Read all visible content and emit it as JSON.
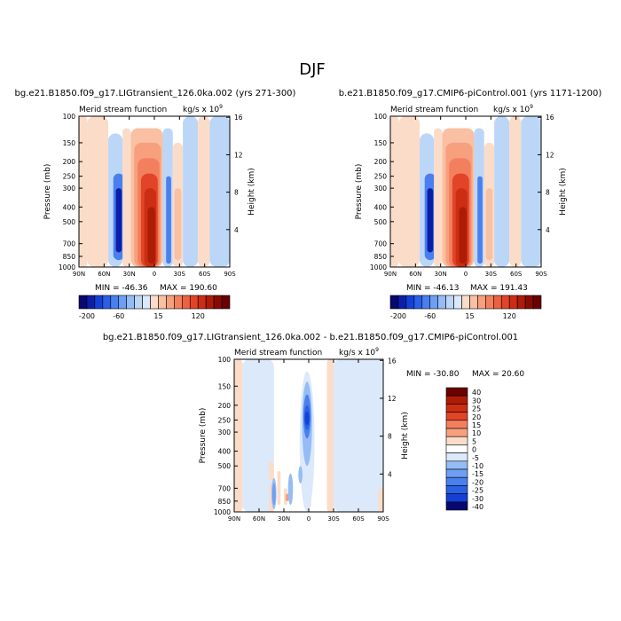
{
  "figure_title": "DJF",
  "colors": {
    "neg_ramp": [
      "#08086e",
      "#0b1ea8",
      "#1440d4",
      "#2a5fe6",
      "#4a7fee",
      "#6e9ff3",
      "#95bcf5",
      "#bcd6f8",
      "#dbe9fb"
    ],
    "pos_ramp": [
      "#fbdcc8",
      "#f9c0a3",
      "#f6a07e",
      "#f2805f",
      "#ec6140",
      "#e24427",
      "#cc2e14",
      "#ad1c06",
      "#8a0a00",
      "#6a0000"
    ]
  },
  "chart_data": [
    {
      "id": "p1",
      "type": "contour",
      "title": "bg.e21.B1850.f09_g17.LIGtransient_126.0ka.002 (yrs 271-300)",
      "subtitle": "Merid stream function",
      "units": "kg/s x 10",
      "units_exp": "9",
      "ylabel": "Pressure (mb)",
      "ylabel_right": "Height (km)",
      "x_ticks": [
        "90N",
        "60N",
        "30N",
        "0",
        "30S",
        "60S",
        "90S"
      ],
      "y_ticks": [
        100,
        150,
        200,
        250,
        300,
        400,
        500,
        700,
        850,
        1000
      ],
      "height_ticks": [
        4,
        8,
        12,
        16
      ],
      "ylim": [
        100,
        1000
      ],
      "min_label": "MIN = -46.36",
      "max_label": "MAX = 190.60",
      "colorbar_ticks": [
        "-200",
        "-60",
        "15",
        "120"
      ],
      "cells": [
        {
          "lat": [
            90,
            80
          ],
          "p": [
            100,
            1000
          ],
          "v": 5
        },
        {
          "lat": [
            80,
            55
          ],
          "p": [
            100,
            1000
          ],
          "v": 5
        },
        {
          "lat": [
            55,
            38
          ],
          "p": [
            130,
            1000
          ],
          "v": -5
        },
        {
          "lat": [
            49,
            36
          ],
          "p": [
            240,
            900
          ],
          "v": -15
        },
        {
          "lat": [
            46,
            39
          ],
          "p": [
            300,
            800
          ],
          "v": -30
        },
        {
          "lat": [
            38,
            28
          ],
          "p": [
            120,
            1000
          ],
          "v": 5
        },
        {
          "lat": [
            28,
            -10
          ],
          "p": [
            120,
            1000
          ],
          "v": 10
        },
        {
          "lat": [
            24,
            -8
          ],
          "p": [
            150,
            1000
          ],
          "v": 20
        },
        {
          "lat": [
            20,
            -6
          ],
          "p": [
            190,
            1000
          ],
          "v": 40
        },
        {
          "lat": [
            16,
            -4
          ],
          "p": [
            240,
            1000
          ],
          "v": 80
        },
        {
          "lat": [
            12,
            -2
          ],
          "p": [
            300,
            1000
          ],
          "v": 120
        },
        {
          "lat": [
            8,
            -1
          ],
          "p": [
            400,
            950
          ],
          "v": 160
        },
        {
          "lat": [
            -10,
            -22
          ],
          "p": [
            120,
            1000
          ],
          "v": -5
        },
        {
          "lat": [
            -14,
            -20
          ],
          "p": [
            250,
            950
          ],
          "v": -15
        },
        {
          "lat": [
            -22,
            -34
          ],
          "p": [
            150,
            1000
          ],
          "v": 5
        },
        {
          "lat": [
            -24,
            -32
          ],
          "p": [
            300,
            900
          ],
          "v": 10
        },
        {
          "lat": [
            -34,
            -52
          ],
          "p": [
            100,
            1000
          ],
          "v": -5
        },
        {
          "lat": [
            -52,
            -66
          ],
          "p": [
            100,
            1000
          ],
          "v": 5
        },
        {
          "lat": [
            -66,
            -90
          ],
          "p": [
            100,
            1000
          ],
          "v": -5
        }
      ]
    },
    {
      "id": "p2",
      "type": "contour",
      "title": "b.e21.B1850.f09_g17.CMIP6-piControl.001 (yrs 1171-1200)",
      "subtitle": "Merid stream function",
      "units": "kg/s x 10",
      "units_exp": "9",
      "ylabel": "Pressure (mb)",
      "ylabel_right": "Height (km)",
      "x_ticks": [
        "90N",
        "60N",
        "30N",
        "0",
        "30S",
        "60S",
        "90S"
      ],
      "y_ticks": [
        100,
        150,
        200,
        250,
        300,
        400,
        500,
        700,
        850,
        1000
      ],
      "height_ticks": [
        4,
        8,
        12,
        16
      ],
      "ylim": [
        100,
        1000
      ],
      "min_label": "MIN = -46.13",
      "max_label": "MAX = 191.43",
      "colorbar_ticks": [
        "-200",
        "-60",
        "15",
        "120"
      ],
      "cells": [
        {
          "lat": [
            90,
            80
          ],
          "p": [
            100,
            1000
          ],
          "v": 5
        },
        {
          "lat": [
            80,
            55
          ],
          "p": [
            100,
            1000
          ],
          "v": 5
        },
        {
          "lat": [
            55,
            38
          ],
          "p": [
            130,
            1000
          ],
          "v": -5
        },
        {
          "lat": [
            49,
            36
          ],
          "p": [
            240,
            900
          ],
          "v": -15
        },
        {
          "lat": [
            46,
            39
          ],
          "p": [
            300,
            800
          ],
          "v": -30
        },
        {
          "lat": [
            38,
            28
          ],
          "p": [
            120,
            1000
          ],
          "v": 5
        },
        {
          "lat": [
            28,
            -10
          ],
          "p": [
            120,
            1000
          ],
          "v": 10
        },
        {
          "lat": [
            24,
            -8
          ],
          "p": [
            150,
            1000
          ],
          "v": 20
        },
        {
          "lat": [
            20,
            -6
          ],
          "p": [
            190,
            1000
          ],
          "v": 40
        },
        {
          "lat": [
            16,
            -4
          ],
          "p": [
            240,
            1000
          ],
          "v": 80
        },
        {
          "lat": [
            12,
            -2
          ],
          "p": [
            300,
            1000
          ],
          "v": 120
        },
        {
          "lat": [
            8,
            -1
          ],
          "p": [
            400,
            950
          ],
          "v": 160
        },
        {
          "lat": [
            -10,
            -22
          ],
          "p": [
            120,
            1000
          ],
          "v": -5
        },
        {
          "lat": [
            -14,
            -20
          ],
          "p": [
            250,
            950
          ],
          "v": -15
        },
        {
          "lat": [
            -22,
            -34
          ],
          "p": [
            150,
            1000
          ],
          "v": 5
        },
        {
          "lat": [
            -24,
            -32
          ],
          "p": [
            300,
            900
          ],
          "v": 10
        },
        {
          "lat": [
            -34,
            -52
          ],
          "p": [
            100,
            1000
          ],
          "v": -5
        },
        {
          "lat": [
            -52,
            -66
          ],
          "p": [
            100,
            1000
          ],
          "v": 5
        },
        {
          "lat": [
            -66,
            -90
          ],
          "p": [
            100,
            1000
          ],
          "v": -5
        }
      ]
    },
    {
      "id": "p3",
      "type": "contour",
      "title": "bg.e21.B1850.f09_g17.LIGtransient_126.0ka.002 - b.e21.B1850.f09_g17.CMIP6-piControl.001",
      "subtitle": "Merid stream function",
      "units": "kg/s x 10",
      "units_exp": "9",
      "ylabel": "Pressure (mb)",
      "ylabel_right": "Height (km)",
      "x_ticks": [
        "90N",
        "60N",
        "30N",
        "0",
        "30S",
        "60S",
        "90S"
      ],
      "y_ticks": [
        100,
        150,
        200,
        250,
        300,
        400,
        500,
        700,
        850,
        1000
      ],
      "height_ticks": [
        4,
        8,
        12,
        16
      ],
      "ylim": [
        100,
        1000
      ],
      "min_label": "MIN = -30.80",
      "max_label": "MAX =  20.60",
      "legend_levels": [
        40,
        30,
        25,
        20,
        15,
        10,
        5,
        0,
        -5,
        -10,
        -15,
        -20,
        -25,
        -30,
        -40
      ],
      "cells": [
        {
          "lat": [
            90,
            80
          ],
          "p": [
            100,
            1000
          ],
          "v": 5
        },
        {
          "lat": [
            80,
            42
          ],
          "p": [
            100,
            1000
          ],
          "v": -5
        },
        {
          "lat": [
            48,
            42
          ],
          "p": [
            650,
            1000
          ],
          "v": 5
        },
        {
          "lat": [
            48,
            42
          ],
          "p": [
            470,
            620
          ],
          "v": 5
        },
        {
          "lat": [
            38,
            34
          ],
          "p": [
            540,
            900
          ],
          "v": 5
        },
        {
          "lat": [
            30,
            26
          ],
          "p": [
            700,
            900
          ],
          "v": 5
        },
        {
          "lat": [
            28,
            24
          ],
          "p": [
            760,
            850
          ],
          "v": 10
        },
        {
          "lat": [
            8,
            4
          ],
          "p": [
            430,
            620
          ],
          "v": 5
        },
        {
          "lat": [
            6,
            -3
          ],
          "p": [
            780,
            950
          ],
          "v": 5
        },
        {
          "lat": [
            5,
            -2
          ],
          "p": [
            800,
            920
          ],
          "v": 10
        },
        {
          "lat": [
            3,
            -1
          ],
          "p": [
            820,
            900
          ],
          "v": 15
        },
        {
          "lat": [
            -22,
            -30
          ],
          "p": [
            100,
            1000
          ],
          "v": 5
        },
        {
          "lat": [
            -30,
            -90
          ],
          "p": [
            100,
            1000
          ],
          "v": -5
        },
        {
          "lat": [
            -84,
            -90
          ],
          "p": [
            700,
            1000
          ],
          "v": 5
        }
      ],
      "blobs": [
        {
          "lat": 2,
          "p": [
            120,
            1000
          ],
          "hw": 9,
          "v": -5
        },
        {
          "lat": 2,
          "p": [
            140,
            500
          ],
          "hw": 6,
          "v": -10
        },
        {
          "lat": 2,
          "p": [
            170,
            330
          ],
          "hw": 4.5,
          "v": -20
        },
        {
          "lat": 2,
          "p": [
            200,
            290
          ],
          "hw": 3.5,
          "v": -25
        },
        {
          "lat": 2,
          "p": [
            220,
            270
          ],
          "hw": 2.5,
          "v": -30
        },
        {
          "lat": 42,
          "p": [
            600,
            960
          ],
          "hw": 3,
          "v": -10
        },
        {
          "lat": 42,
          "p": [
            650,
            900
          ],
          "hw": 2,
          "v": -15
        },
        {
          "lat": 22,
          "p": [
            560,
            900
          ],
          "hw": 3,
          "v": -10
        },
        {
          "lat": 10,
          "p": [
            500,
            650
          ],
          "hw": 2.5,
          "v": -10
        }
      ]
    }
  ]
}
